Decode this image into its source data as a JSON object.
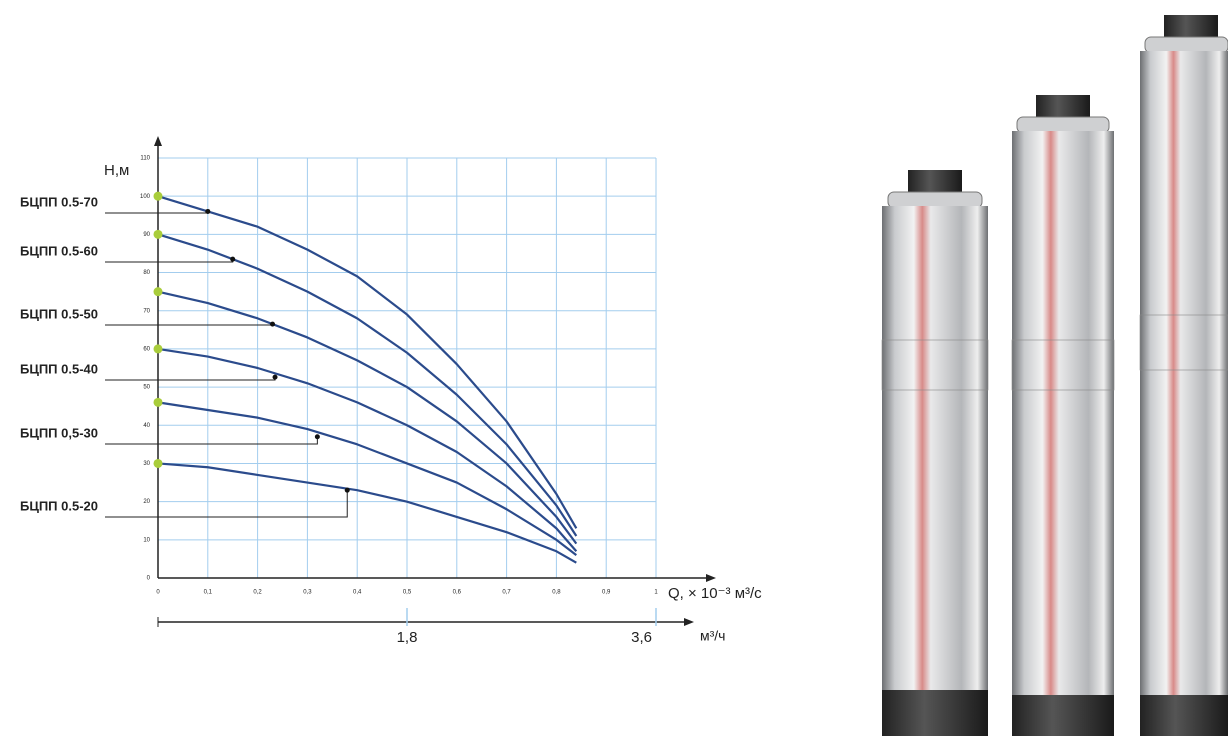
{
  "chart_data": {
    "type": "line",
    "y_label": "Н,м",
    "x_label": "Q, × 10⁻³ м³/с",
    "x2_label": "м³/ч",
    "x": [
      0,
      0.1,
      0.2,
      0.3,
      0.4,
      0.5,
      0.6,
      0.7,
      0.8,
      0.84
    ],
    "series": [
      {
        "name": "БЦПП 0.5-70",
        "color": "#2b4b8c",
        "values": [
          100,
          96,
          92,
          86,
          79,
          69,
          56,
          41,
          22,
          13
        ],
        "label_x": 0.1,
        "label_y": 96
      },
      {
        "name": "БЦПП 0.5-60",
        "color": "#2b4b8c",
        "values": [
          90,
          86,
          81,
          75,
          68,
          59,
          48,
          35,
          19,
          11
        ],
        "label_x": 0.15,
        "label_y": 83.5
      },
      {
        "name": "БЦПП 0.5-50",
        "color": "#2b4b8c",
        "values": [
          75,
          72,
          68,
          63,
          57,
          50,
          41,
          30,
          16,
          9
        ],
        "label_x": 0.23,
        "label_y": 66.5
      },
      {
        "name": "БЦПП 0.5-40",
        "color": "#2b4b8c",
        "values": [
          60,
          58,
          55,
          51,
          46,
          40,
          33,
          24,
          13,
          7
        ],
        "label_x": 0.235,
        "label_y": 52.6
      },
      {
        "name": "БЦПП 0,5-30",
        "color": "#2b4b8c",
        "values": [
          46,
          44,
          42,
          39,
          35,
          30,
          25,
          18,
          10,
          6
        ],
        "label_x": 0.32,
        "label_y": 37
      },
      {
        "name": "БЦПП 0.5-20",
        "color": "#2b4b8c",
        "values": [
          30,
          29,
          27,
          25,
          23,
          20,
          16,
          12,
          7,
          4
        ],
        "label_x": 0.38,
        "label_y": 23
      }
    ],
    "start_color": "#a9cd3b",
    "xlim": [
      0,
      1
    ],
    "xticks": [
      0,
      {
        "value": 0.1,
        "label": "0,1"
      },
      {
        "value": 0.2,
        "label": "0,2"
      },
      {
        "value": 0.3,
        "label": "0,3"
      },
      {
        "value": 0.4,
        "label": "0,4"
      },
      {
        "value": 0.5,
        "label": "0,5"
      },
      {
        "value": 0.6,
        "label": "0,6"
      },
      {
        "value": 0.7,
        "label": "0,7"
      },
      {
        "value": 0.8,
        "label": "0,8"
      },
      {
        "value": 0.9,
        "label": "0,9"
      },
      1
    ],
    "ylim": [
      0,
      110
    ],
    "yticks": [
      0,
      10,
      20,
      30,
      40,
      50,
      60,
      70,
      80,
      90,
      100,
      110
    ],
    "x2lim": [
      0,
      3.6
    ],
    "x2ticks": [
      {
        "value": 1.8,
        "label": "1,8"
      },
      {
        "value": 3.6,
        "label": "3,6"
      }
    ],
    "grid": true,
    "grid_color": "#a3cdee"
  }
}
